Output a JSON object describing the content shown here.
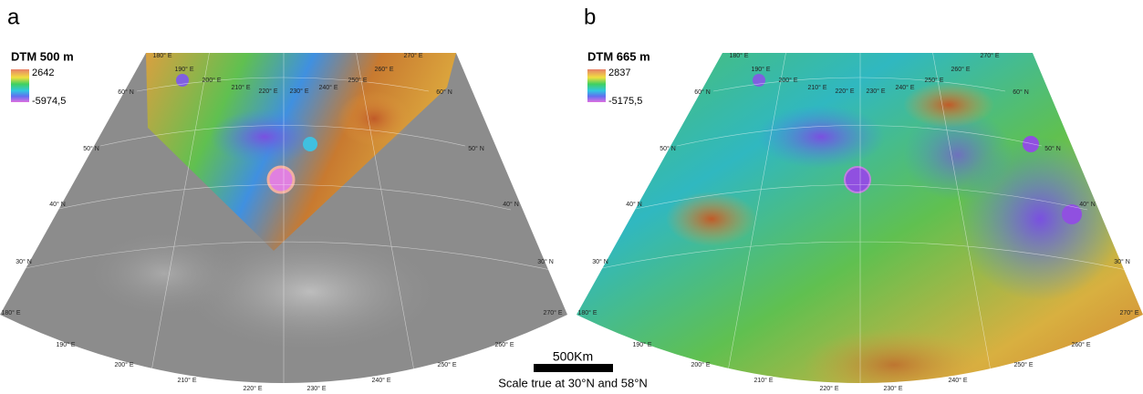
{
  "panels": [
    {
      "label": "a",
      "dtm_title": "DTM  500 m",
      "scale_max": "2642",
      "scale_min": "-5974,5",
      "lon_top": [
        "180° E",
        "190° E",
        "200° E",
        "210° E",
        "220° E",
        "230° E",
        "240° E",
        "250° E",
        "260° E",
        "270° E"
      ],
      "lon_bottom": [
        "180° E",
        "190° E",
        "200° E",
        "210° E",
        "220° E",
        "230° E",
        "240° E",
        "250° E",
        "260° E",
        "270° E"
      ],
      "lat_left": [
        "60° N",
        "50° N",
        "40° N",
        "30° N"
      ],
      "lat_right": [
        "60° N",
        "50° N",
        "40° N",
        "30° N"
      ]
    },
    {
      "label": "b",
      "dtm_title": "DTM  665 m",
      "scale_max": "2837",
      "scale_min": "-5175,5",
      "lon_top": [
        "180° E",
        "190° E",
        "200° E",
        "210° E",
        "220° E",
        "230° E",
        "240° E",
        "250° E",
        "260° E",
        "270° E"
      ],
      "lon_bottom": [
        "180° E",
        "190° E",
        "200° E",
        "210° E",
        "220° E",
        "230° E",
        "240° E",
        "250° E",
        "260° E",
        "270° E"
      ],
      "lat_left": [
        "60° N",
        "50° N",
        "40° N",
        "30° N"
      ],
      "lat_right": [
        "60° N",
        "50° N",
        "40° N",
        "30° N"
      ]
    }
  ],
  "scale_bar": {
    "length": "500Km",
    "note": "Scale true at 30°N and 58°N"
  }
}
